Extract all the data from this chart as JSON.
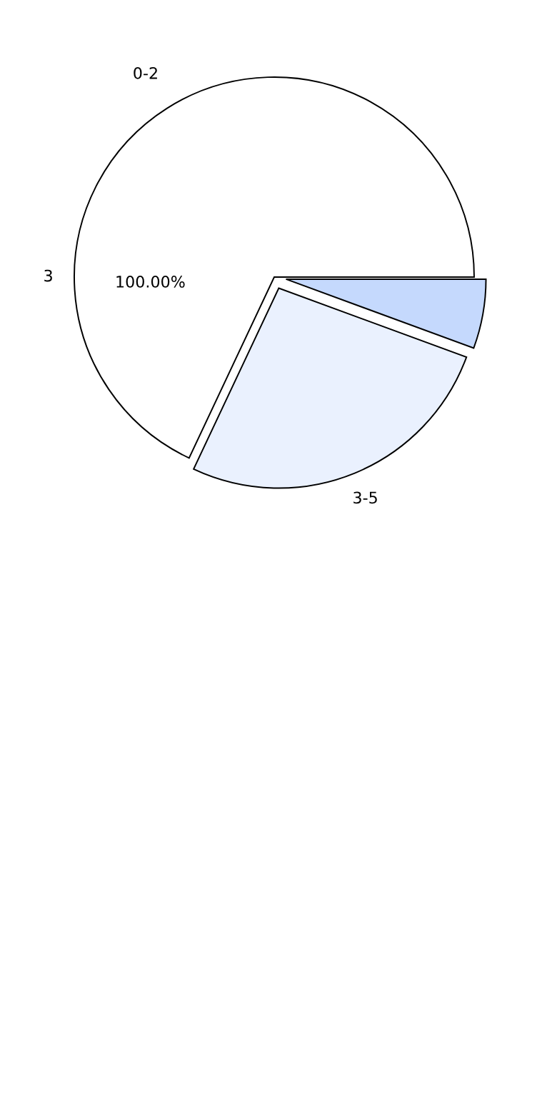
{
  "chart_data": {
    "type": "pie",
    "categories": [
      "0-2",
      "3-5",
      null
    ],
    "values": [
      68,
      26.4,
      5.6
    ],
    "colors": [
      "#ffffff",
      "#eaf1fe",
      "#c5d9fd"
    ],
    "annotations": [
      "3",
      "100.00%"
    ]
  }
}
